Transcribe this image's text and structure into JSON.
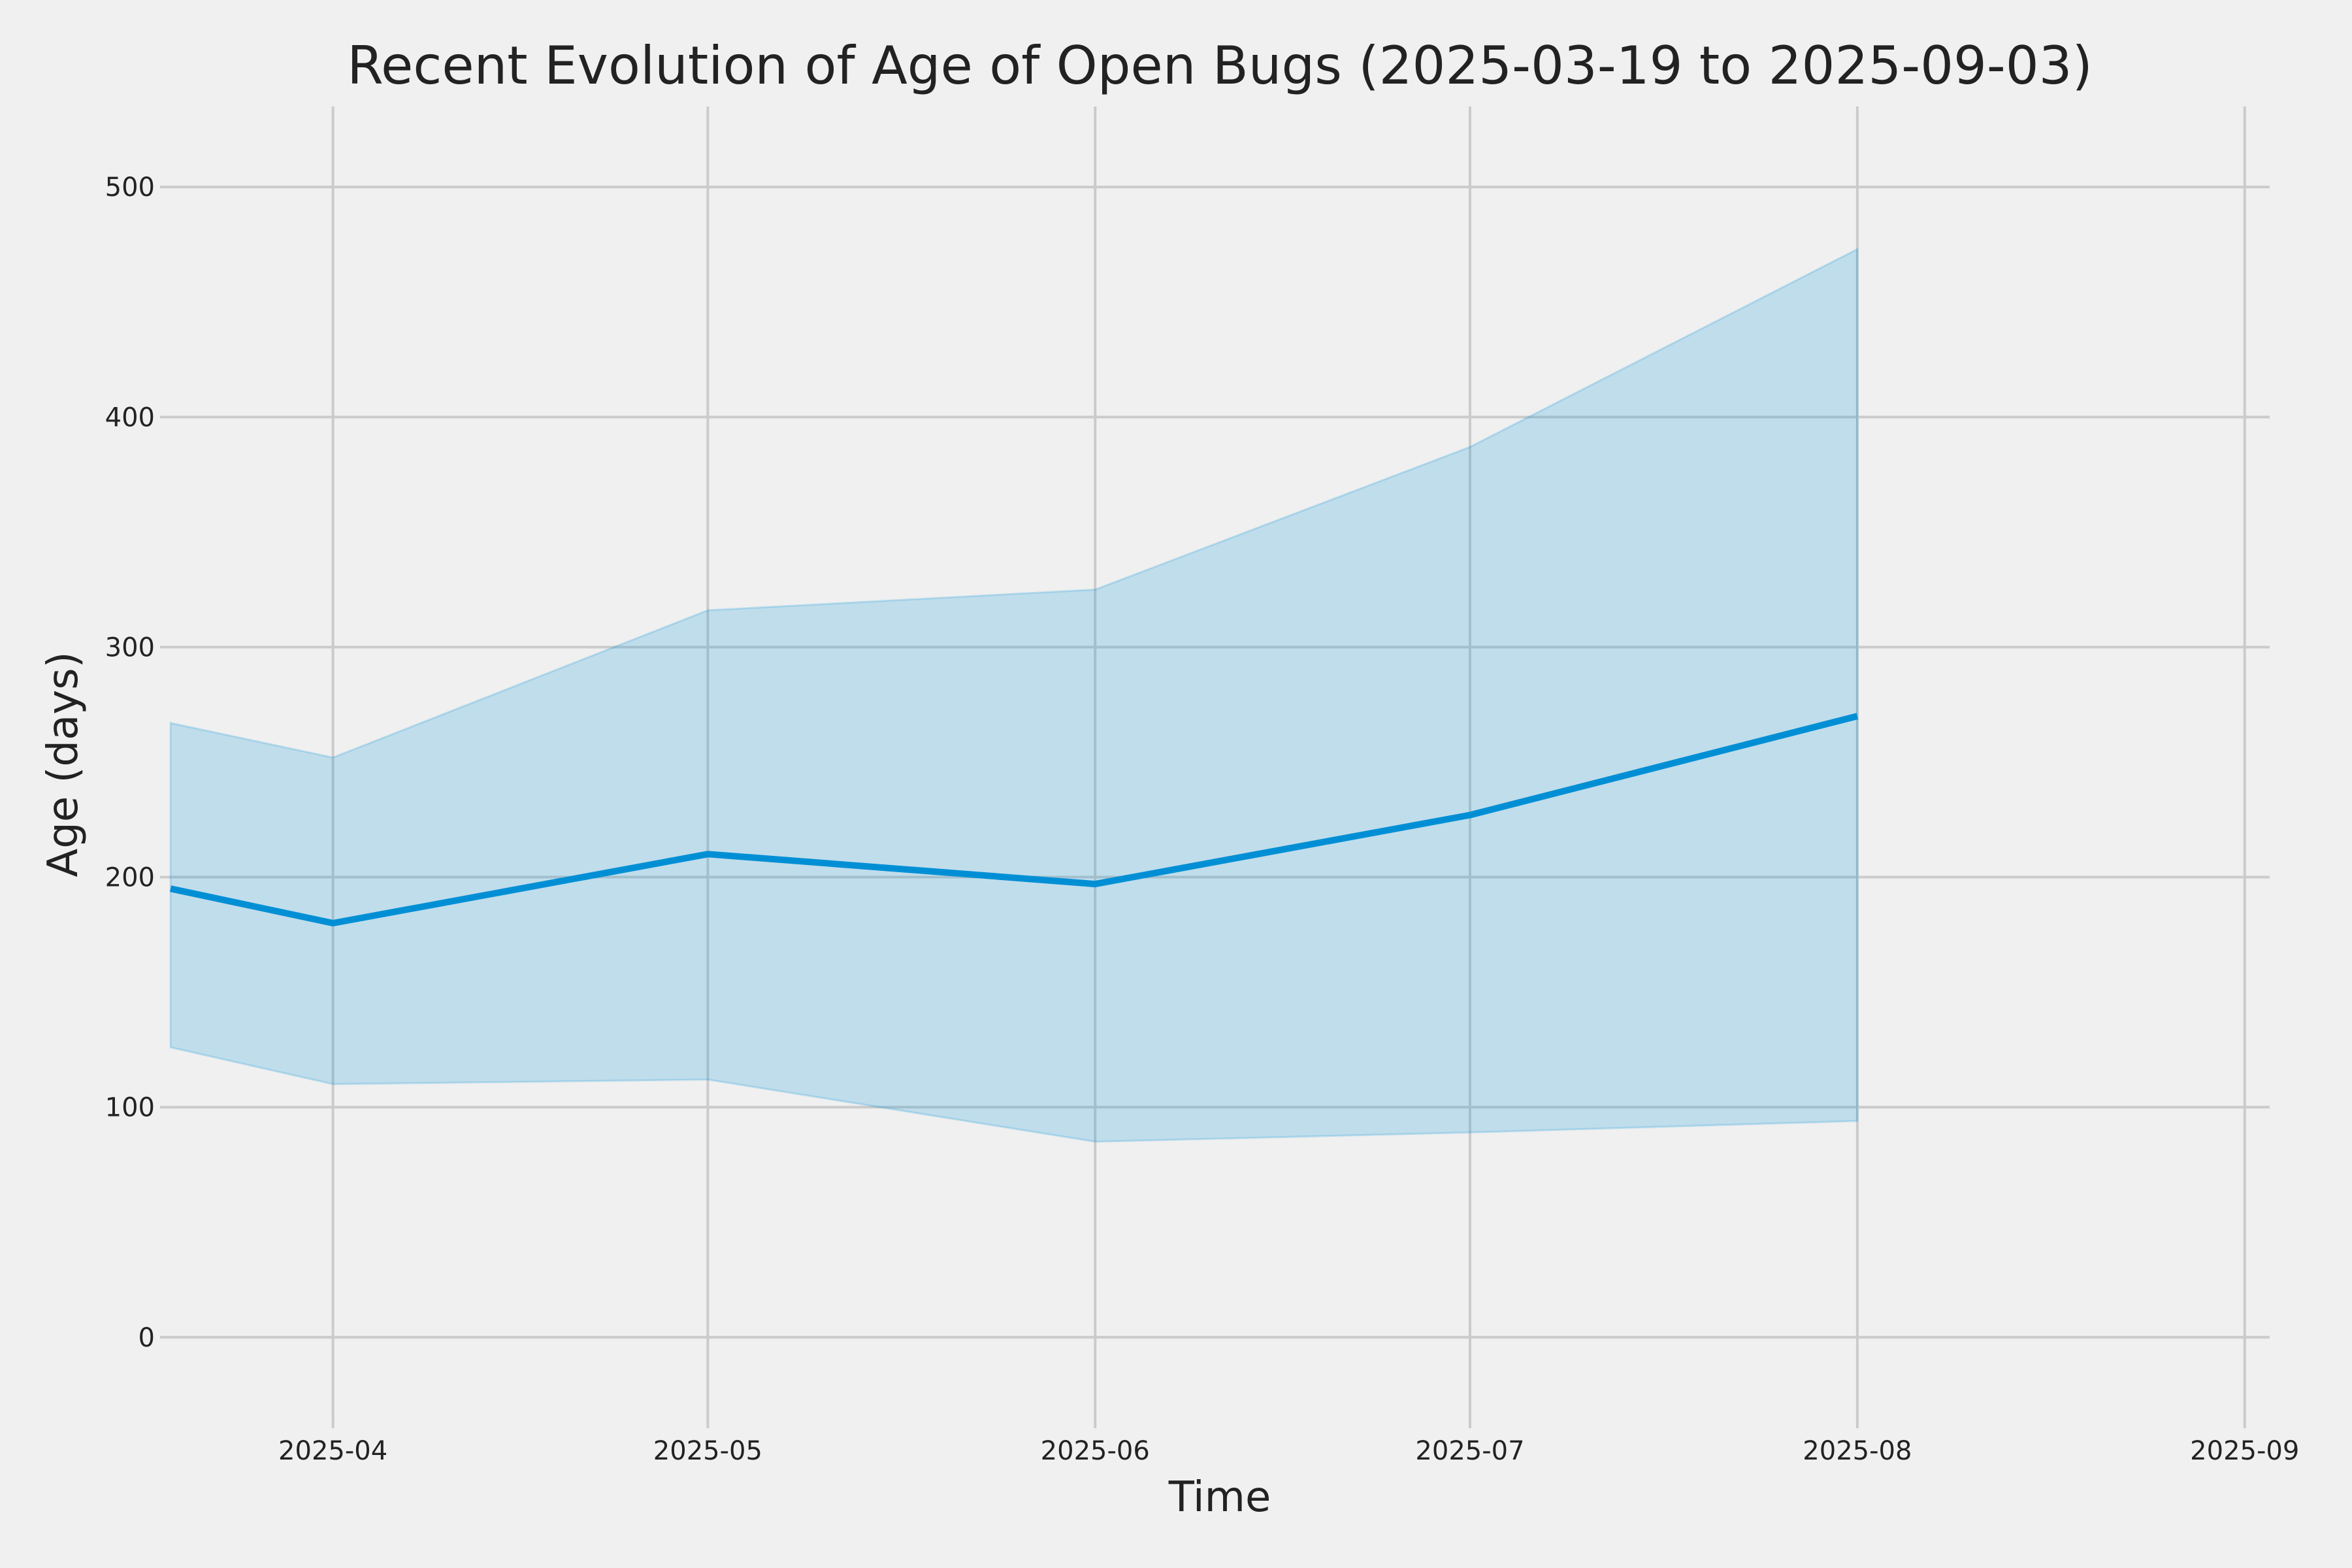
{
  "chart_data": {
    "type": "line",
    "title": "Recent Evolution of Age of Open Bugs (2025-03-19 to 2025-09-03)",
    "xlabel": "Time",
    "ylabel": "Age (days)",
    "xlim": [
      "2025-03-19",
      "2025-09-03"
    ],
    "ylim": [
      -35,
      535
    ],
    "x_ticks": [
      "2025-04",
      "2025-05",
      "2025-06",
      "2025-07",
      "2025-08",
      "2025-09"
    ],
    "y_ticks": [
      0,
      100,
      200,
      300,
      400,
      500
    ],
    "grid": true,
    "colors": {
      "line": "#008fd5",
      "band": "#008fd5",
      "background": "#f0f0f0",
      "grid": "#cbcbcb",
      "text": "#222222"
    },
    "series": [
      {
        "x": [
          "2025-03-19",
          "2025-04-01",
          "2025-05-01",
          "2025-06-01",
          "2025-07-01",
          "2025-08-01"
        ],
        "values": [
          195,
          180,
          210,
          197,
          227,
          270
        ],
        "band_lower": [
          126,
          110,
          112,
          85,
          89,
          94
        ],
        "band_upper": [
          267,
          252,
          316,
          325,
          387,
          473
        ]
      }
    ]
  }
}
